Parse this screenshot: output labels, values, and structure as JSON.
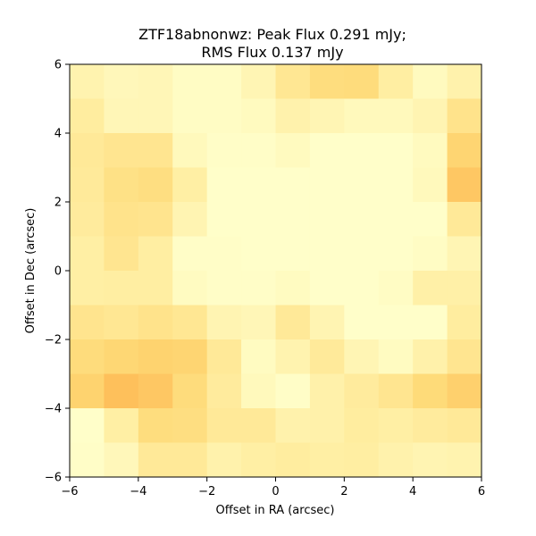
{
  "chart_data": {
    "type": "heatmap",
    "title_line1": "ZTF18abnonwz: Peak Flux 0.291 mJy;",
    "title_line2": "RMS Flux 0.137 mJy",
    "xlabel": "Offset in RA (arcsec)",
    "ylabel": "Offset in Dec (arcsec)",
    "xlim": [
      -6,
      6
    ],
    "ylim": [
      -6,
      6
    ],
    "xticks": [
      -6,
      -4,
      -2,
      0,
      2,
      4,
      6
    ],
    "yticks": [
      -6,
      -4,
      -2,
      0,
      2,
      4,
      6
    ],
    "xtick_labels": [
      "−6",
      "−4",
      "−2",
      "0",
      "2",
      "4",
      "6"
    ],
    "ytick_labels": [
      "−6",
      "−4",
      "−2",
      "0",
      "2",
      "4",
      "6"
    ],
    "colormap": [
      "#ffffcc",
      "#ffeda0",
      "#fed976",
      "#feb24c"
    ],
    "color_range": [
      0,
      1
    ],
    "grid": false,
    "rows_top_to_bottom": [
      [
        0.22,
        0.14,
        0.16,
        0.06,
        0.06,
        0.18,
        0.44,
        0.6,
        0.62,
        0.32,
        0.1,
        0.24
      ],
      [
        0.34,
        0.16,
        0.16,
        0.06,
        0.06,
        0.1,
        0.24,
        0.18,
        0.12,
        0.12,
        0.2,
        0.5
      ],
      [
        0.4,
        0.46,
        0.46,
        0.12,
        0.04,
        0.04,
        0.1,
        0.02,
        0.02,
        0.02,
        0.1,
        0.7
      ],
      [
        0.38,
        0.54,
        0.58,
        0.3,
        0.02,
        0.02,
        0.02,
        0.02,
        0.02,
        0.02,
        0.12,
        0.82
      ],
      [
        0.36,
        0.5,
        0.48,
        0.2,
        0.02,
        0.02,
        0.02,
        0.02,
        0.02,
        0.02,
        0.02,
        0.4
      ],
      [
        0.3,
        0.46,
        0.32,
        0.04,
        0.04,
        0.02,
        0.02,
        0.02,
        0.02,
        0.02,
        0.06,
        0.18
      ],
      [
        0.3,
        0.32,
        0.32,
        0.08,
        0.04,
        0.04,
        0.08,
        0.02,
        0.02,
        0.06,
        0.28,
        0.28
      ],
      [
        0.48,
        0.44,
        0.5,
        0.44,
        0.2,
        0.16,
        0.4,
        0.2,
        0.02,
        0.02,
        0.02,
        0.34
      ],
      [
        0.62,
        0.68,
        0.72,
        0.7,
        0.4,
        0.08,
        0.22,
        0.38,
        0.18,
        0.08,
        0.26,
        0.46
      ],
      [
        0.72,
        0.88,
        0.82,
        0.62,
        0.36,
        0.12,
        0.04,
        0.26,
        0.36,
        0.46,
        0.64,
        0.74
      ],
      [
        0.02,
        0.3,
        0.6,
        0.58,
        0.4,
        0.4,
        0.24,
        0.26,
        0.34,
        0.3,
        0.36,
        0.4
      ],
      [
        0.04,
        0.14,
        0.4,
        0.4,
        0.24,
        0.3,
        0.34,
        0.3,
        0.32,
        0.24,
        0.2,
        0.22
      ]
    ]
  }
}
